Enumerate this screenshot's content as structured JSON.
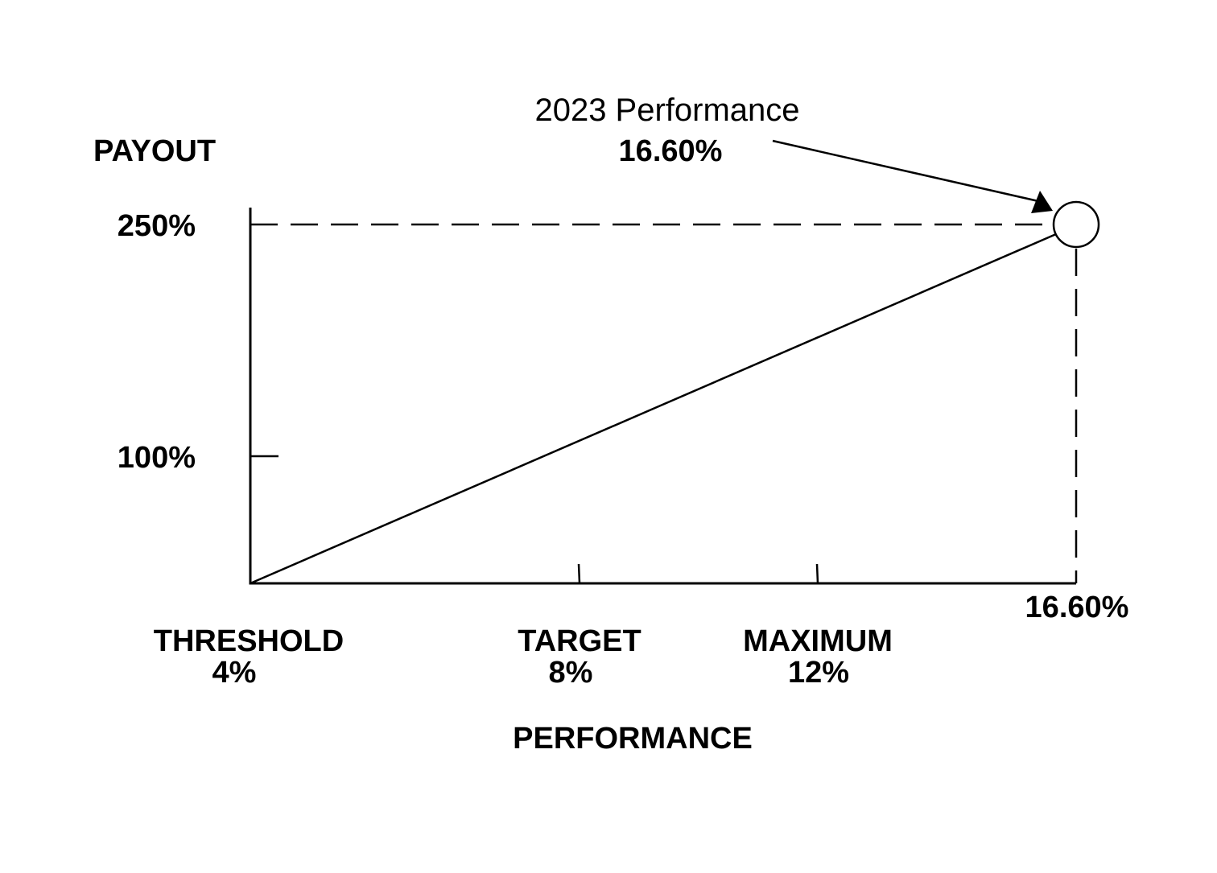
{
  "chart_data": {
    "type": "line",
    "ylabel": "PAYOUT",
    "xlabel": "PERFORMANCE",
    "y_ticks": [
      {
        "label": "250%",
        "value": 250
      },
      {
        "label": "100%",
        "value": 100
      }
    ],
    "x_ticks": [
      {
        "name": "THRESHOLD",
        "value_label": "4%",
        "value": 4
      },
      {
        "name": "TARGET",
        "value_label": "8%",
        "value": 8
      },
      {
        "name": "MAXIMUM",
        "value_label": "12%",
        "value": 12
      }
    ],
    "actual_label": "16.60%",
    "series": [
      {
        "points": [
          {
            "x": 4,
            "y": 0
          },
          {
            "x": 16.6,
            "y": 250
          }
        ]
      }
    ],
    "highlight_point": {
      "x": 16.6,
      "y": 250
    },
    "annotation": {
      "title": "2023 Performance",
      "value": "16.60%"
    },
    "colors": {
      "line": "#000000",
      "background": "#ffffff"
    }
  }
}
